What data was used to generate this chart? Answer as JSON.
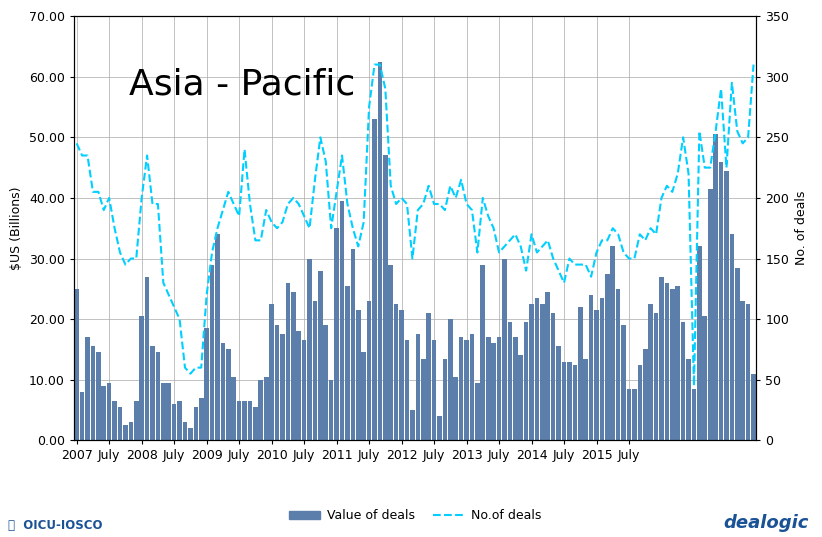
{
  "title": "Asia - Pacific",
  "ylabel_left": "$US (Billions)",
  "ylabel_right": "No. of deals",
  "ylim_left": [
    0,
    70
  ],
  "ylim_right": [
    0,
    350
  ],
  "yticks_left": [
    0,
    10,
    20,
    30,
    40,
    50,
    60,
    70
  ],
  "yticks_left_labels": [
    "0.00",
    "10.00",
    "20.00",
    "30.00",
    "40.00",
    "50.00",
    "60.00",
    "70.00"
  ],
  "yticks_right": [
    0,
    50,
    100,
    150,
    200,
    250,
    300,
    350
  ],
  "bar_color": "#5b7faa",
  "line_color": "#00cfff",
  "background_color": "#ffffff",
  "legend_bar_label": "Value of deals",
  "legend_line_label": "No.of deals",
  "title_fontsize": 26,
  "axis_fontsize": 9,
  "bar_values": [
    25.0,
    8.0,
    17.0,
    15.5,
    14.5,
    9.0,
    9.5,
    6.5,
    5.5,
    2.5,
    3.0,
    6.5,
    20.5,
    27.0,
    15.5,
    14.5,
    9.5,
    9.5,
    6.0,
    6.5,
    3.0,
    2.0,
    5.5,
    7.0,
    18.5,
    29.0,
    34.0,
    16.0,
    15.0,
    10.5,
    6.5,
    6.5,
    6.5,
    5.5,
    10.0,
    10.5,
    22.5,
    19.0,
    17.5,
    26.0,
    24.5,
    18.0,
    16.5,
    30.0,
    23.0,
    28.0,
    19.0,
    10.0,
    35.0,
    39.5,
    25.5,
    31.5,
    21.5,
    14.5,
    23.0,
    53.0,
    62.5,
    47.0,
    29.0,
    22.5,
    21.5,
    16.5,
    5.0,
    17.5,
    13.5,
    21.0,
    16.5,
    4.0,
    13.5,
    20.0,
    10.5,
    17.0,
    16.5,
    17.5,
    9.5,
    29.0,
    17.0,
    16.0,
    17.0,
    30.0,
    19.5,
    17.0,
    14.0,
    19.5,
    22.5,
    23.5,
    22.5,
    24.5,
    21.0,
    15.5,
    13.0,
    13.0,
    12.5,
    22.0,
    13.5,
    24.0,
    21.5,
    23.5,
    27.5,
    32.0,
    25.0,
    19.0,
    8.5,
    8.5,
    12.5,
    15.0,
    22.5,
    21.0,
    27.0,
    26.0,
    25.0,
    25.5,
    19.5,
    13.5,
    8.5,
    32.0,
    20.5,
    41.5,
    50.5,
    46.0,
    44.5,
    34.0,
    28.5,
    23.0,
    22.5,
    11.0
  ],
  "line_values": [
    245,
    235,
    235,
    205,
    205,
    190,
    200,
    175,
    155,
    145,
    150,
    150,
    200,
    235,
    195,
    195,
    130,
    120,
    110,
    100,
    60,
    55,
    60,
    60,
    120,
    155,
    175,
    190,
    205,
    195,
    185,
    240,
    195,
    165,
    165,
    190,
    180,
    175,
    180,
    195,
    200,
    195,
    185,
    175,
    215,
    250,
    230,
    175,
    205,
    235,
    195,
    175,
    160,
    180,
    275,
    310,
    310,
    290,
    210,
    195,
    200,
    195,
    150,
    190,
    195,
    210,
    195,
    195,
    190,
    210,
    200,
    215,
    195,
    190,
    155,
    200,
    185,
    175,
    155,
    160,
    165,
    170,
    160,
    140,
    170,
    155,
    160,
    165,
    150,
    140,
    130,
    150,
    145,
    145,
    145,
    135,
    155,
    165,
    165,
    175,
    170,
    155,
    150,
    150,
    170,
    165,
    175,
    170,
    200,
    210,
    205,
    220,
    250,
    220,
    45,
    255,
    225,
    225,
    255,
    290,
    225,
    295,
    255,
    245,
    250,
    310
  ],
  "x_tick_positions": [
    0,
    6,
    12,
    18,
    24,
    30,
    36,
    42,
    48,
    54,
    60,
    66,
    72,
    78,
    84,
    90,
    96,
    102
  ],
  "x_tick_labels": [
    "2007 July",
    "",
    "2008 July",
    "",
    "2009 July",
    "",
    "2010 July",
    "",
    "2011 July",
    "",
    "2012 July",
    "",
    "2013 July",
    "",
    "2014 July",
    "",
    "2015 July",
    ""
  ]
}
